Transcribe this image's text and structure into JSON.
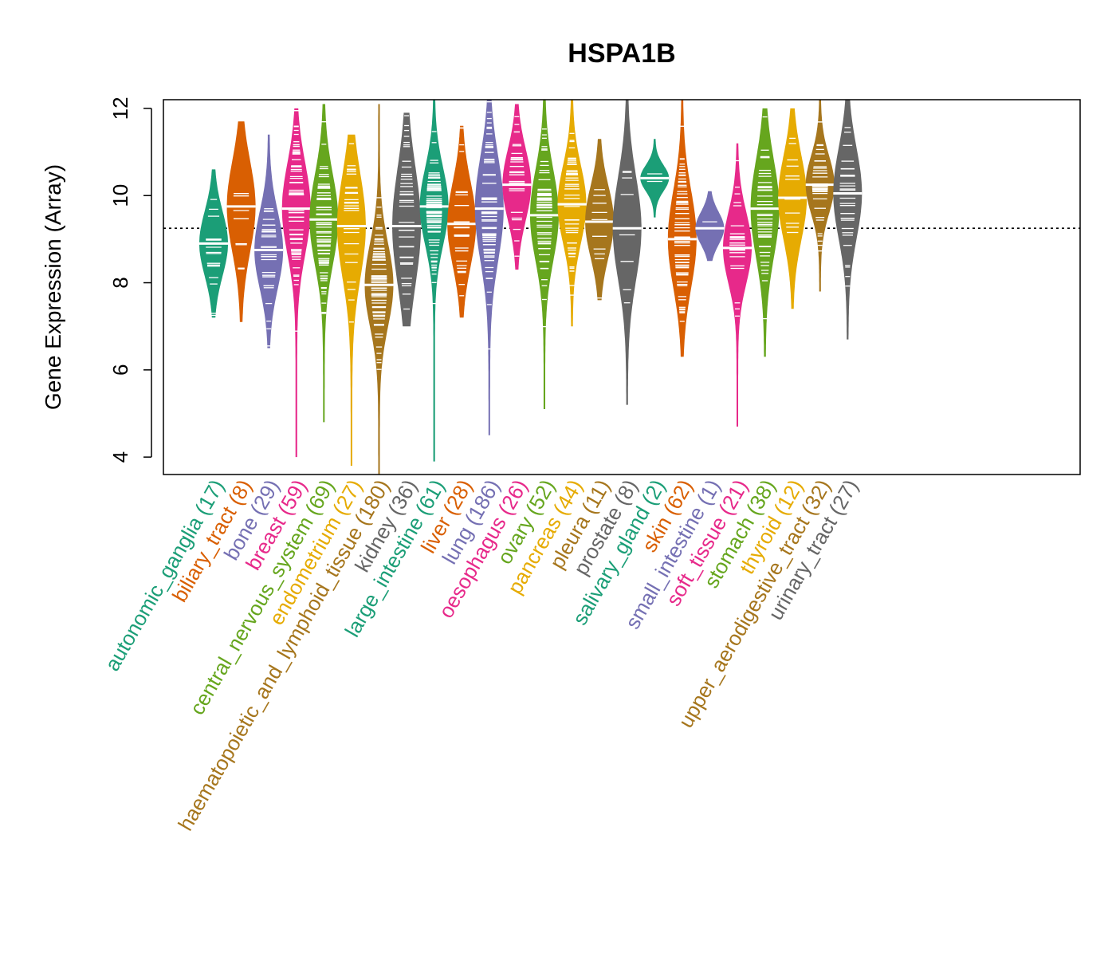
{
  "chart_data": {
    "type": "violin",
    "title": "HSPA1B",
    "xlabel": "",
    "ylabel": "Gene Expression (Array)",
    "ylim": [
      3.6,
      12.2
    ],
    "yticks": [
      4,
      6,
      8,
      10,
      12
    ],
    "reference_line": 9.25,
    "groups": [
      {
        "name": "autonomic_ganglia",
        "n": 17,
        "label": "autonomic_ganglia (17)",
        "color": "#1B9E77",
        "min": 7.2,
        "max": 10.6,
        "median": 8.9,
        "q1": 8.4,
        "q3": 9.4
      },
      {
        "name": "biliary_tract",
        "n": 8,
        "label": "biliary_tract (8)",
        "color": "#D95F02",
        "min": 7.1,
        "max": 11.7,
        "median": 9.75,
        "q1": 9.0,
        "q3": 10.4
      },
      {
        "name": "bone",
        "n": 29,
        "label": "bone (29)",
        "color": "#7570B3",
        "min": 6.5,
        "max": 11.4,
        "median": 8.75,
        "q1": 8.2,
        "q3": 9.4
      },
      {
        "name": "breast",
        "n": 59,
        "label": "breast (59)",
        "color": "#E7298A",
        "min": 4.0,
        "max": 12.0,
        "median": 9.7,
        "q1": 9.0,
        "q3": 10.4
      },
      {
        "name": "central_nervous_system",
        "n": 69,
        "label": "central_nervous_system (69)",
        "color": "#66A61E",
        "min": 4.8,
        "max": 12.1,
        "median": 9.45,
        "q1": 8.8,
        "q3": 10.2
      },
      {
        "name": "endometrium",
        "n": 27,
        "label": "endometrium (27)",
        "color": "#E6AB02",
        "min": 3.8,
        "max": 11.4,
        "median": 9.3,
        "q1": 8.4,
        "q3": 10.0
      },
      {
        "name": "haematopoietic_and_lymphoid_tissue",
        "n": 180,
        "label": "haematopoietic_and_lymphoid_tissue (180)",
        "color": "#A6761D",
        "min": 3.6,
        "max": 12.1,
        "median": 7.95,
        "q1": 7.3,
        "q3": 8.6
      },
      {
        "name": "kidney",
        "n": 36,
        "label": "kidney (36)",
        "color": "#666666",
        "min": 7.0,
        "max": 11.9,
        "median": 9.3,
        "q1": 8.5,
        "q3": 10.3
      },
      {
        "name": "large_intestine",
        "n": 61,
        "label": "large_intestine (61)",
        "color": "#1B9E77",
        "min": 3.9,
        "max": 12.2,
        "median": 9.75,
        "q1": 9.2,
        "q3": 10.4
      },
      {
        "name": "liver",
        "n": 28,
        "label": "liver (28)",
        "color": "#D95F02",
        "min": 7.2,
        "max": 11.6,
        "median": 9.35,
        "q1": 8.7,
        "q3": 10.0
      },
      {
        "name": "lung",
        "n": 186,
        "label": "lung (186)",
        "color": "#7570B3",
        "min": 4.5,
        "max": 12.2,
        "median": 9.7,
        "q1": 8.9,
        "q3": 10.5
      },
      {
        "name": "oesophagus",
        "n": 26,
        "label": "oesophagus (26)",
        "color": "#E7298A",
        "min": 8.3,
        "max": 12.1,
        "median": 10.25,
        "q1": 9.8,
        "q3": 10.9
      },
      {
        "name": "ovary",
        "n": 52,
        "label": "ovary (52)",
        "color": "#66A61E",
        "min": 5.1,
        "max": 12.2,
        "median": 9.55,
        "q1": 8.9,
        "q3": 10.3
      },
      {
        "name": "pancreas",
        "n": 44,
        "label": "pancreas (44)",
        "color": "#E6AB02",
        "min": 7.0,
        "max": 12.2,
        "median": 9.8,
        "q1": 9.2,
        "q3": 10.4
      },
      {
        "name": "pleura",
        "n": 11,
        "label": "pleura (11)",
        "color": "#A6761D",
        "min": 7.6,
        "max": 11.3,
        "median": 9.4,
        "q1": 8.8,
        "q3": 9.9
      },
      {
        "name": "prostate",
        "n": 8,
        "label": "prostate (8)",
        "color": "#666666",
        "min": 5.2,
        "max": 12.2,
        "median": 9.25,
        "q1": 8.5,
        "q3": 10.1
      },
      {
        "name": "salivary_gland",
        "n": 2,
        "label": "salivary_gland (2)",
        "color": "#1B9E77",
        "min": 9.5,
        "max": 11.3,
        "median": 10.4,
        "q1": 10.2,
        "q3": 10.6
      },
      {
        "name": "skin",
        "n": 62,
        "label": "skin (62)",
        "color": "#D95F02",
        "min": 6.3,
        "max": 12.2,
        "median": 9.0,
        "q1": 8.3,
        "q3": 9.8
      },
      {
        "name": "small_intestine",
        "n": 1,
        "label": "small_intestine (1)",
        "color": "#7570B3",
        "min": 8.5,
        "max": 10.1,
        "median": 9.25,
        "q1": 9.0,
        "q3": 9.5
      },
      {
        "name": "soft_tissue",
        "n": 21,
        "label": "soft_tissue (21)",
        "color": "#E7298A",
        "min": 4.7,
        "max": 11.2,
        "median": 8.8,
        "q1": 8.3,
        "q3": 9.4
      },
      {
        "name": "stomach",
        "n": 38,
        "label": "stomach (38)",
        "color": "#66A61E",
        "min": 6.3,
        "max": 12.0,
        "median": 9.7,
        "q1": 9.0,
        "q3": 10.5
      },
      {
        "name": "thyroid",
        "n": 12,
        "label": "thyroid (12)",
        "color": "#E6AB02",
        "min": 7.4,
        "max": 12.0,
        "median": 9.95,
        "q1": 9.3,
        "q3": 10.6
      },
      {
        "name": "upper_aerodigestive_tract",
        "n": 32,
        "label": "upper_aerodigestive_tract (32)",
        "color": "#A6761D",
        "min": 7.8,
        "max": 12.2,
        "median": 10.25,
        "q1": 9.8,
        "q3": 10.7
      },
      {
        "name": "urinary_tract",
        "n": 27,
        "label": "urinary_tract (27)",
        "color": "#666666",
        "min": 6.7,
        "max": 12.2,
        "median": 10.05,
        "q1": 9.3,
        "q3": 10.7
      }
    ]
  }
}
